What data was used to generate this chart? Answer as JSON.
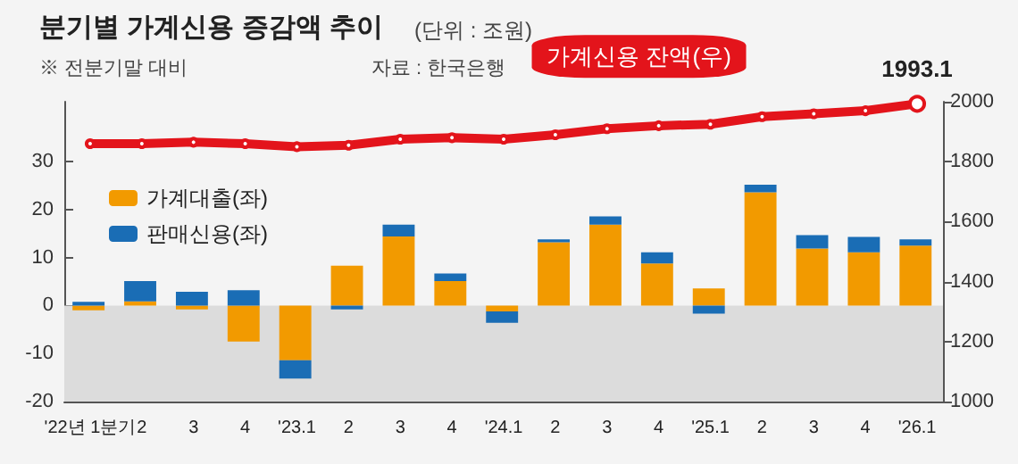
{
  "chart_data": {
    "type": "bar",
    "title": "분기별 가계신용 증감액 추이",
    "subtitle": "(단위 : 조원)",
    "annotations": [
      "※ 전분기말 대비",
      "자료 : 한국은행"
    ],
    "categories": [
      "'22년 1분기",
      "2",
      "3",
      "4",
      "'23.1",
      "2",
      "3",
      "4",
      "'24.1",
      "2",
      "3",
      "4",
      "'25.1",
      "2",
      "3",
      "4",
      "'26.1"
    ],
    "stacked": true,
    "series": [
      {
        "name": "가계대출(좌)",
        "color": "#f29a00",
        "values": [
          -1,
          0.9,
          -0.8,
          -7.5,
          -11.4,
          8.3,
          14.4,
          5.1,
          -1.2,
          13.2,
          16.9,
          8.8,
          3.6,
          23.6,
          11.9,
          11.1,
          12.5
        ]
      },
      {
        "name": "판매신용(좌)",
        "color": "#1a6db5",
        "values": [
          0.8,
          4.2,
          2.9,
          3.2,
          -3.8,
          -0.8,
          2.5,
          1.6,
          -2.4,
          0.6,
          1.7,
          2.3,
          -1.7,
          1.6,
          2.8,
          3.2,
          1.3
        ]
      },
      {
        "name": "가계신용 잔액(우)",
        "type": "line",
        "axis": "y2",
        "color": "#e3141b",
        "marker": "circle",
        "values": [
          1860,
          1860,
          1865,
          1860,
          1850,
          1855,
          1875,
          1880,
          1875,
          1890,
          1910,
          1920,
          1925,
          1950,
          1960,
          1970,
          1993.1
        ],
        "value_labels": [
          null,
          null,
          null,
          null,
          null,
          null,
          null,
          null,
          null,
          null,
          null,
          null,
          null,
          null,
          null,
          null,
          "1993.1"
        ]
      }
    ],
    "ylim": [
      -20,
      42.5
    ],
    "yticks": [
      -20,
      -10,
      0,
      10,
      20,
      30
    ],
    "y2lim": [
      1000,
      2000
    ],
    "y2ticks": [
      1000,
      1200,
      1400,
      1600,
      1800,
      2000
    ],
    "bands": [
      {
        "axis": "y",
        "from": -20,
        "to": 0,
        "color": "#dcdcdc"
      }
    ],
    "grid": false,
    "legend": "top left"
  }
}
